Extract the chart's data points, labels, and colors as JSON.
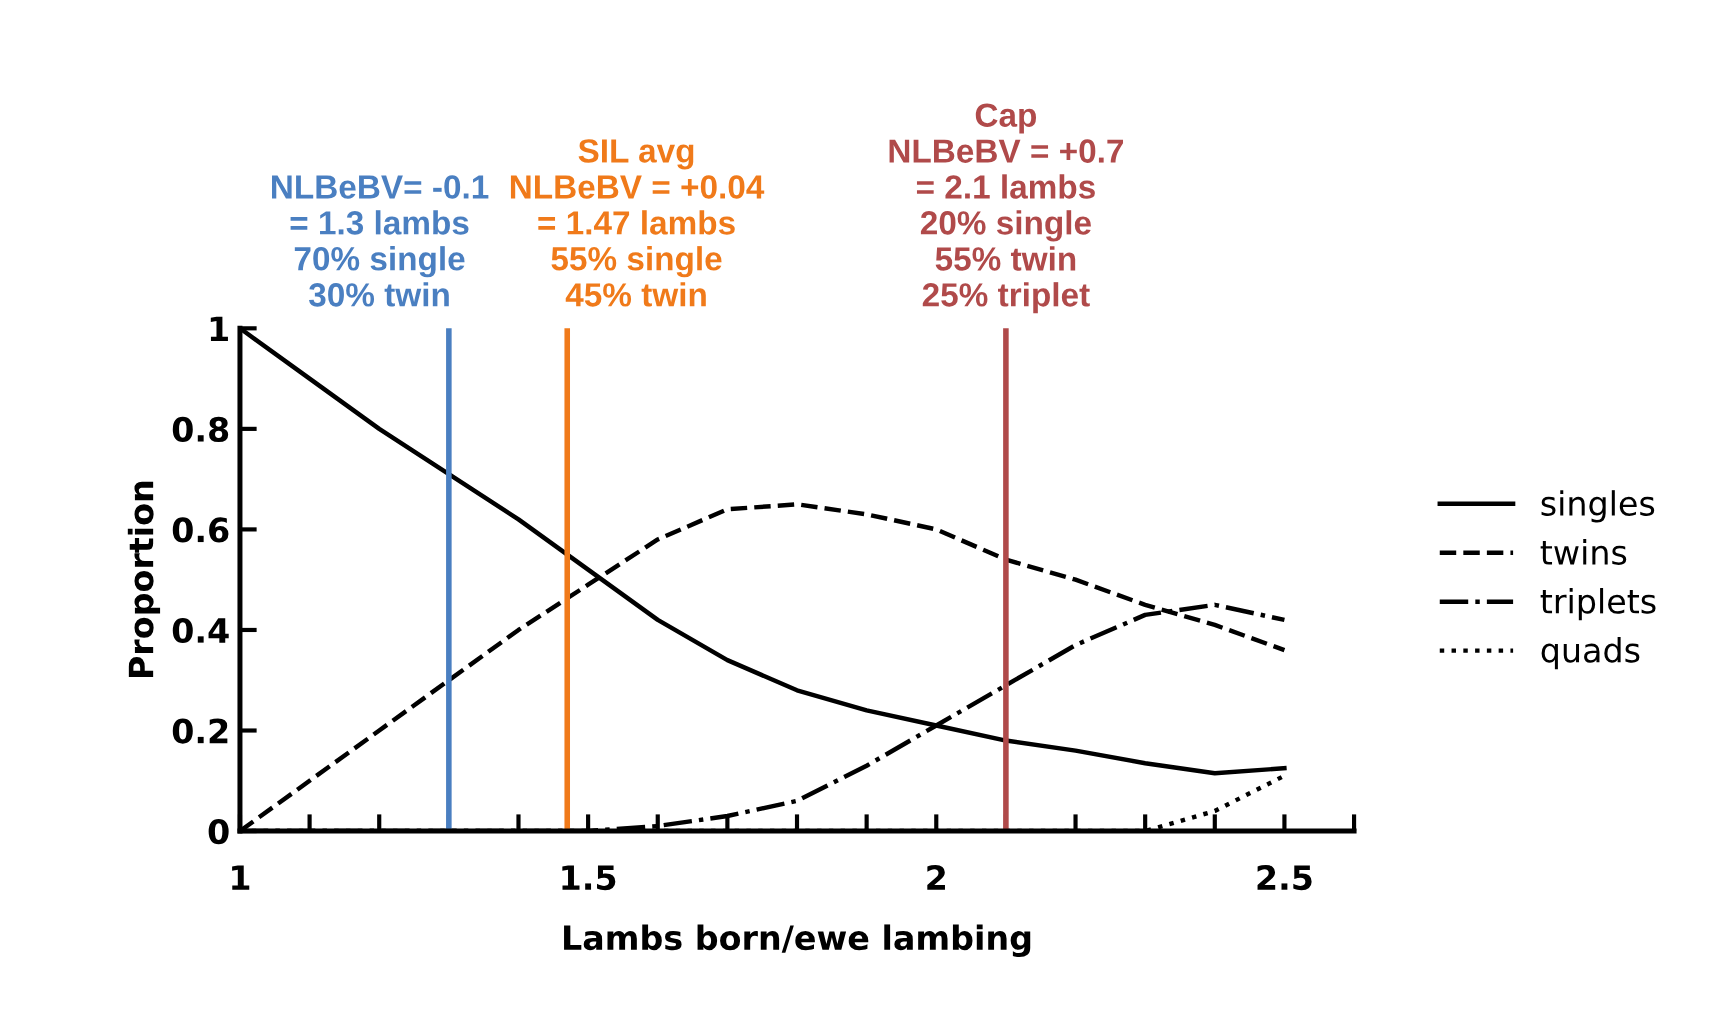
{
  "chart_data": {
    "type": "line",
    "xlabel": "Lambs born/ewe lambing",
    "ylabel": "Proportion",
    "x": [
      1,
      1.1,
      1.2,
      1.3,
      1.4,
      1.5,
      1.6,
      1.7,
      1.8,
      1.9,
      2.0,
      2.1,
      2.2,
      2.3,
      2.4,
      2.5
    ],
    "series": [
      {
        "name": "singles",
        "color": "#000000",
        "line_style": "solid",
        "values": [
          1.0,
          0.9,
          0.8,
          0.71,
          0.62,
          0.52,
          0.42,
          0.34,
          0.28,
          0.24,
          0.21,
          0.18,
          0.16,
          0.135,
          0.115,
          0.125
        ]
      },
      {
        "name": "twins",
        "color": "#000000",
        "line_style": "dashed",
        "values": [
          0,
          0.1,
          0.2,
          0.3,
          0.4,
          0.49,
          0.58,
          0.64,
          0.65,
          0.63,
          0.6,
          0.54,
          0.5,
          0.45,
          0.41,
          0.36
        ]
      },
      {
        "name": "triplets",
        "color": "#000000",
        "line_style": "dashdot",
        "values": [
          0,
          0,
          0,
          0,
          0,
          0,
          0.01,
          0.03,
          0.06,
          0.13,
          0.21,
          0.29,
          0.37,
          0.43,
          0.45,
          0.42
        ]
      },
      {
        "name": "quads",
        "color": "#000000",
        "line_style": "dotted",
        "values": [
          0,
          0,
          0,
          0,
          0,
          0,
          0,
          0,
          0,
          0,
          0,
          0,
          0,
          0,
          0.04,
          0.11
        ]
      }
    ],
    "xlim": [
      1,
      2.6
    ],
    "xticks": [
      1,
      {
        "value": 1.1,
        "label": null
      },
      {
        "value": 1.2,
        "label": null
      },
      {
        "value": 1.3,
        "label": null
      },
      {
        "value": 1.4,
        "label": null
      },
      1.5,
      {
        "value": 1.6,
        "label": null
      },
      {
        "value": 1.7,
        "label": null
      },
      {
        "value": 1.8,
        "label": null
      },
      {
        "value": 1.9,
        "label": null
      },
      2,
      {
        "value": 2.1,
        "label": null
      },
      {
        "value": 2.2,
        "label": null
      },
      {
        "value": 2.3,
        "label": null
      },
      {
        "value": 2.4,
        "label": null
      },
      2.5,
      {
        "value": 2.6,
        "label": null
      }
    ],
    "ylim": [
      0,
      1
    ],
    "yticks": [
      0,
      0.2,
      0.4,
      0.6,
      0.8,
      1
    ],
    "ref_lines": [
      {
        "axis": "x",
        "value": 1.3,
        "color": "#4a7fc1",
        "label": "NLBeBV= -0.1\n= 1.3 lambs\n70% single\n30% twin"
      },
      {
        "axis": "x",
        "value": 1.47,
        "color": "#f07a1a",
        "label": "SIL avg\nNLBeBV = +0.04\n= 1.47 lambs\n55% single\n45% twin"
      },
      {
        "axis": "x",
        "value": 2.1,
        "color": "#b04a4a",
        "label": "Cap\nNLBeBV = +0.7\n= 2.1 lambs\n20% single\n55% twin\n25% triplet"
      }
    ],
    "legend": "right",
    "grid": false
  }
}
